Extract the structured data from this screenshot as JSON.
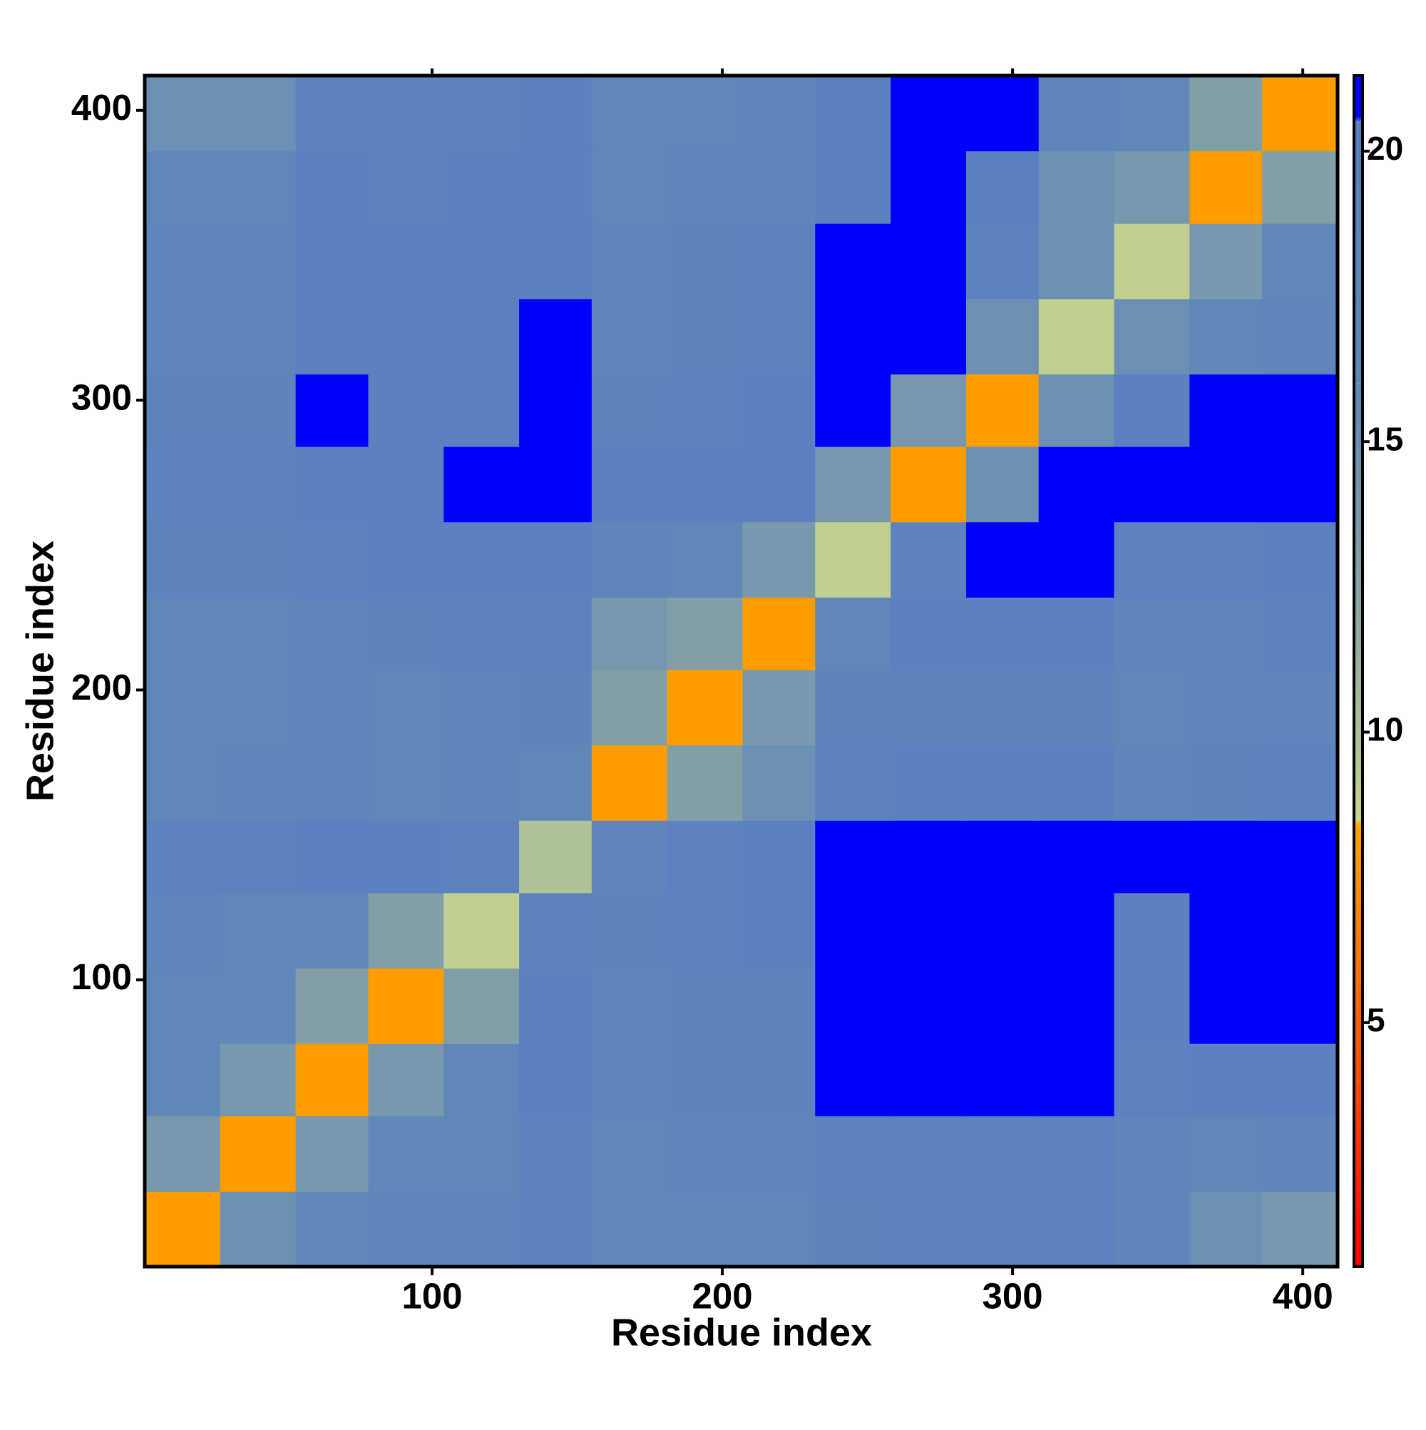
{
  "chart_data": {
    "type": "heatmap",
    "x_label": "Residue index",
    "y_label": "Residue index",
    "xlim": [
      1,
      412
    ],
    "ylim": [
      1,
      412
    ],
    "xticks": [
      100,
      200,
      300,
      400
    ],
    "yticks": [
      100,
      200,
      300,
      400
    ],
    "x_bins": [
      1,
      27,
      53,
      78,
      104,
      130,
      155,
      181,
      207,
      232,
      258,
      284,
      309,
      335,
      361,
      386,
      412
    ],
    "y_bins": [
      1,
      27,
      53,
      78,
      104,
      130,
      155,
      181,
      207,
      232,
      258,
      284,
      309,
      335,
      361,
      386,
      412
    ],
    "values": [
      [
        8,
        15,
        16,
        17,
        17,
        19,
        16,
        16,
        16,
        18,
        19,
        19,
        19,
        17,
        15,
        14
      ],
      [
        14,
        8,
        14,
        16,
        16,
        19,
        16,
        17,
        17,
        19,
        19,
        19,
        19,
        17,
        16,
        17
      ],
      [
        16,
        14,
        8,
        14,
        16,
        20,
        17,
        18,
        18,
        21,
        21,
        21,
        21,
        19,
        20,
        20
      ],
      [
        16,
        16,
        13,
        8,
        13,
        20,
        17,
        18,
        18,
        21,
        21,
        21,
        21,
        20,
        21,
        21
      ],
      [
        17,
        16,
        16,
        13,
        9,
        19,
        18,
        19,
        20,
        21,
        21,
        21,
        21,
        20,
        21,
        21
      ],
      [
        19,
        19,
        20,
        20,
        19,
        10,
        17,
        19,
        20,
        21,
        21,
        21,
        21,
        21,
        21,
        21
      ],
      [
        16,
        17,
        17,
        16,
        17,
        16,
        8,
        13,
        15,
        19,
        20,
        20,
        20,
        17,
        18,
        19
      ],
      [
        16,
        16,
        17,
        16,
        17,
        18,
        13,
        8,
        14,
        18,
        18,
        18,
        18,
        16,
        17,
        17
      ],
      [
        16,
        16,
        17,
        18,
        19,
        19,
        14,
        13,
        8,
        16,
        20,
        20,
        20,
        17,
        17,
        19
      ],
      [
        18,
        18,
        19,
        20,
        20,
        20,
        17,
        16,
        14,
        9,
        19,
        21,
        21,
        19,
        19,
        20
      ],
      [
        19,
        19,
        20,
        20,
        21,
        21,
        20,
        20,
        20,
        14,
        8,
        15,
        21,
        21,
        21,
        21
      ],
      [
        18,
        18,
        21,
        20,
        20,
        21,
        18,
        19,
        20,
        21,
        14,
        8,
        15,
        20,
        21,
        21
      ],
      [
        17,
        17,
        20,
        20,
        20,
        21,
        17,
        18,
        19,
        21,
        21,
        15,
        9,
        15,
        16,
        17
      ],
      [
        17,
        17,
        20,
        20,
        20,
        20,
        17,
        18,
        19,
        21,
        21,
        19,
        15,
        9,
        14,
        16
      ],
      [
        16,
        16,
        20,
        19,
        20,
        20,
        16,
        17,
        17,
        20,
        21,
        20,
        15,
        14,
        8,
        13
      ],
      [
        15,
        15,
        19,
        19,
        19,
        20,
        16,
        16,
        17,
        20,
        21,
        21,
        17,
        16,
        13,
        8
      ]
    ],
    "clim": [
      0.8,
      21.3
    ],
    "cticks": [
      5,
      10,
      15,
      20
    ],
    "colorscale": [
      [
        0.8,
        "#ff0000"
      ],
      [
        4,
        "#ff4a00"
      ],
      [
        8.4,
        "#ffa500"
      ],
      [
        8.5,
        "#c9d68e"
      ],
      [
        12,
        "#8ea7a2"
      ],
      [
        16,
        "#5f88b8"
      ],
      [
        20.5,
        "#5a80c2"
      ],
      [
        20.6,
        "#0000ff"
      ],
      [
        21.3,
        "#0000ff"
      ]
    ]
  }
}
